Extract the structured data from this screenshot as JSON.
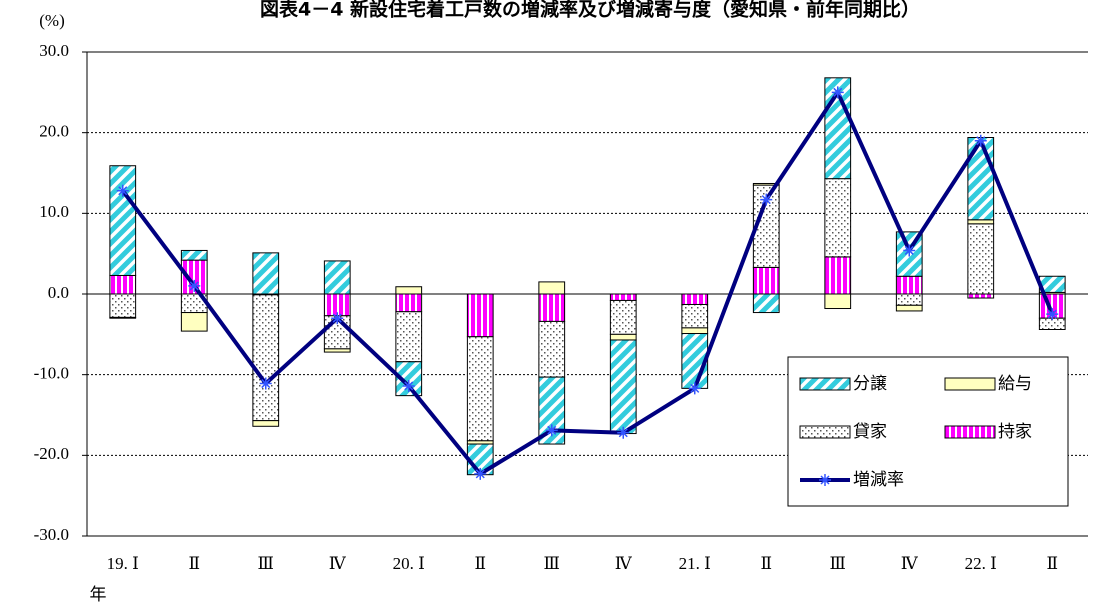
{
  "chart_data": {
    "type": "bar",
    "stacked": true,
    "title": "図表4－4 新設住宅着工戸数の増減率及び増減寄与度（愛知県・前年同期比）",
    "y_label": "(%)",
    "x_label": "年",
    "categories": [
      "19. Ⅰ",
      "Ⅱ",
      "Ⅲ",
      "Ⅳ",
      "20. Ⅰ",
      "Ⅱ",
      "Ⅲ",
      "Ⅳ",
      "21. Ⅰ",
      "Ⅱ",
      "Ⅲ",
      "Ⅳ",
      "22. Ⅰ",
      "Ⅱ"
    ],
    "series": [
      {
        "name": "分譲",
        "color": "#33ccdd",
        "values": [
          13.6,
          1.2,
          5.1,
          4.1,
          -4.2,
          -3.8,
          -8.3,
          -11.6,
          -6.8,
          -2.3,
          12.5,
          5.5,
          10.2,
          2.0
        ]
      },
      {
        "name": "給与",
        "color": "#ffffc0",
        "values": [
          -0.1,
          -2.3,
          -0.7,
          -0.4,
          0.9,
          -0.4,
          1.5,
          -0.7,
          -0.7,
          0.2,
          -1.8,
          -0.7,
          0.5,
          0.2
        ]
      },
      {
        "name": "貸家",
        "color": "#c0c0c0",
        "values": [
          -2.9,
          -2.3,
          -15.6,
          -4.1,
          -6.2,
          -12.9,
          -6.9,
          -4.2,
          -2.9,
          10.2,
          9.7,
          -1.4,
          8.7,
          -1.4
        ]
      },
      {
        "name": "持家",
        "color": "#ff00ff",
        "values": [
          2.3,
          4.2,
          -0.1,
          -2.7,
          -2.2,
          -5.3,
          -3.4,
          -0.8,
          -1.3,
          3.3,
          4.6,
          2.2,
          -0.5,
          -3.0
        ]
      },
      {
        "name": "増減率",
        "type": "line",
        "color": "#000080",
        "values": [
          12.8,
          1.0,
          -11.1,
          -3.0,
          -11.4,
          -22.3,
          -16.9,
          -17.2,
          -11.7,
          11.7,
          25.0,
          5.4,
          19.0,
          -2.5
        ]
      }
    ],
    "ylim": [
      -30,
      30
    ],
    "yticks": [
      {
        "value": -30,
        "label": "-30.0"
      },
      {
        "value": -20,
        "label": "-20.0"
      },
      {
        "value": -10,
        "label": "-10.0"
      },
      {
        "value": 0,
        "label": "0.0"
      },
      {
        "value": 10,
        "label": "10.0"
      },
      {
        "value": 20,
        "label": "20.0"
      },
      {
        "value": 30,
        "label": "30.0"
      }
    ],
    "grid": true,
    "legend": "lower right"
  }
}
